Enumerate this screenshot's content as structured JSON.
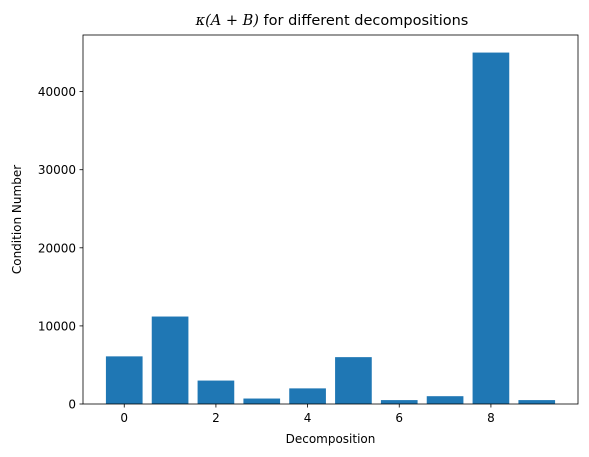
{
  "chart_data": {
    "type": "bar",
    "title": {
      "kappa": "κ",
      "math_arg": "(A + B)",
      "rest": " for different decompositions"
    },
    "xlabel": "Decomposition",
    "ylabel": "Condition Number",
    "categories": [
      0,
      1,
      2,
      3,
      4,
      5,
      6,
      7,
      8,
      9
    ],
    "values": [
      6100,
      11200,
      3000,
      700,
      2000,
      6000,
      500,
      1000,
      45000,
      500
    ],
    "xlim": [
      -0.9,
      9.9
    ],
    "ylim": [
      0,
      47250
    ],
    "xticks": [
      0,
      2,
      4,
      6,
      8
    ],
    "yticks": [
      0,
      10000,
      20000,
      30000,
      40000
    ],
    "bar_color": "#1f77b4",
    "grid": false,
    "legend": "none"
  }
}
